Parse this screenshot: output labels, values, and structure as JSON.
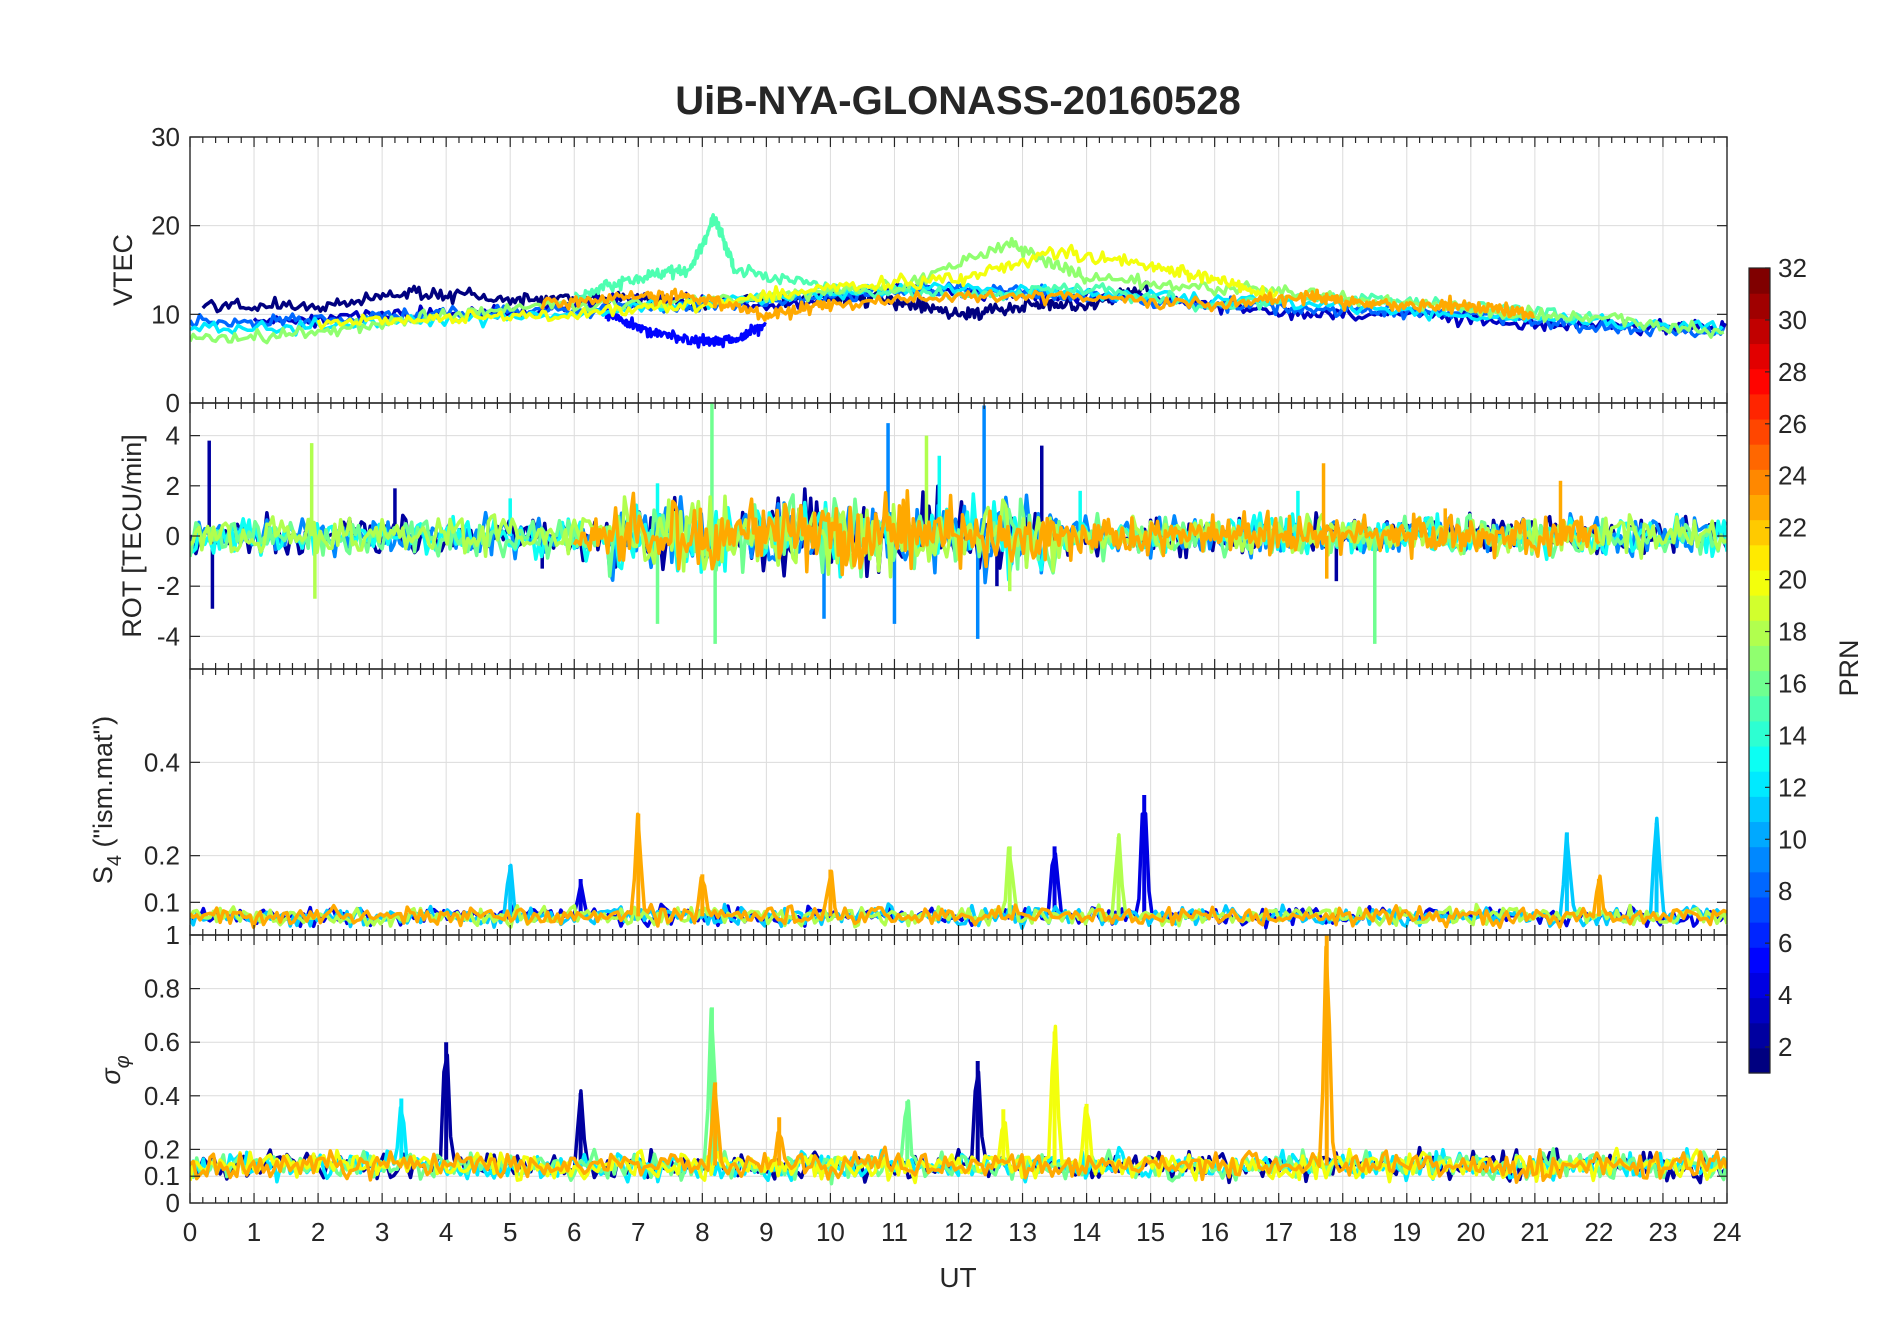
{
  "chart_data": {
    "type": "line",
    "title": "UiB-NYA-GLONASS-20160528",
    "xlabel": "UT",
    "xlim": [
      0,
      24
    ],
    "x_ticks": [
      0,
      1,
      2,
      3,
      4,
      5,
      6,
      7,
      8,
      9,
      10,
      11,
      12,
      13,
      14,
      15,
      16,
      17,
      18,
      19,
      20,
      21,
      22,
      23,
      24
    ],
    "colorbar": {
      "label": "PRN",
      "range": [
        1,
        32
      ],
      "ticks": [
        2,
        4,
        6,
        8,
        10,
        12,
        14,
        16,
        18,
        20,
        22,
        24,
        26,
        28,
        30,
        32
      ],
      "colormap": "jet"
    },
    "panels": [
      {
        "name": "vtec",
        "ylabel": "VTEC",
        "ylim": [
          0,
          30
        ],
        "y_ticks": [
          0,
          10,
          20,
          30
        ],
        "y_tick_labels": [
          "0",
          "10",
          "20",
          "30"
        ],
        "series": [
          {
            "prn": 1,
            "t": [
              0.2,
              2,
              3.5,
              5,
              6.5,
              8,
              10,
              11,
              12,
              13,
              14,
              15
            ],
            "values": [
              11,
              11,
              12.5,
              11.5,
              12,
              11,
              12,
              11.5,
              10,
              11,
              11,
              13
            ]
          },
          {
            "prn": 3,
            "t": [
              1,
              3,
              5,
              7,
              9,
              11,
              13,
              15,
              17,
              19,
              21,
              23,
              24
            ],
            "values": [
              9,
              10,
              10,
              12,
              11,
              13,
              12,
              12,
              10,
              10,
              9,
              8.5,
              8.5
            ]
          },
          {
            "prn": 5,
            "t": [
              6.5,
              7.2,
              8,
              8.5,
              9
            ],
            "values": [
              10,
              8,
              7,
              7,
              9
            ]
          },
          {
            "prn": 8,
            "t": [
              0,
              2,
              4,
              6,
              8,
              10,
              12,
              14,
              16,
              18,
              20,
              22,
              24
            ],
            "values": [
              9,
              9.5,
              10,
              10.5,
              11,
              12,
              13,
              12,
              11,
              10.5,
              10,
              8.5,
              8
            ]
          },
          {
            "prn": 12,
            "t": [
              0,
              3,
              6,
              9,
              12,
              15,
              18,
              21,
              24
            ],
            "values": [
              8,
              9,
              10,
              12,
              13,
              12,
              11,
              9.5,
              8.5
            ]
          },
          {
            "prn": 15,
            "t": [
              6,
              7,
              7.8,
              8.2,
              8.5,
              10,
              12,
              14,
              16,
              18,
              20,
              22
            ],
            "values": [
              12,
              14,
              15,
              21,
              15,
              13,
              12,
              13,
              11,
              12,
              11,
              9.5
            ]
          },
          {
            "prn": 17,
            "t": [
              0,
              2,
              4,
              6,
              9,
              11,
              12.8,
              14,
              16,
              18,
              20,
              22,
              24
            ],
            "values": [
              7,
              8,
              10,
              11,
              12,
              13,
              18,
              14,
              13,
              12,
              10.5,
              9.5,
              8
            ]
          },
          {
            "prn": 20,
            "t": [
              2,
              4,
              6,
              8,
              10,
              12,
              13.5,
              15,
              16,
              17
            ],
            "values": [
              9,
              9.5,
              10,
              11,
              13,
              14,
              17,
              15.5,
              14,
              12
            ]
          },
          {
            "prn": 23,
            "t": [
              5.5,
              7,
              8,
              9,
              10,
              12,
              14,
              16,
              17.5,
              18,
              19,
              20,
              21
            ],
            "values": [
              11,
              12,
              12,
              10,
              11,
              12,
              12,
              11,
              12,
              11.5,
              11,
              11,
              10
            ]
          }
        ]
      },
      {
        "name": "rot",
        "ylabel": "ROT [TECU/min]",
        "ylim": [
          -5.3,
          5.3
        ],
        "y_ticks": [
          -4,
          -2,
          0,
          2,
          4
        ],
        "y_tick_labels": [
          "-4",
          "-2",
          "0",
          "2",
          "4"
        ],
        "series": [
          {
            "prn": 2,
            "spikes": [
              [
                0.3,
                3.8
              ],
              [
                0.35,
                -2.9
              ],
              [
                3.2,
                1.9
              ],
              [
                5.5,
                -1.3
              ],
              [
                12.6,
                -2
              ],
              [
                13.3,
                3.6
              ],
              [
                17.9,
                -1.8
              ]
            ]
          },
          {
            "prn": 9,
            "spikes": [
              [
                9.9,
                -3.3
              ],
              [
                10.9,
                4.5
              ],
              [
                11.0,
                -3.5
              ],
              [
                12.3,
                -4.1
              ],
              [
                12.4,
                5.2
              ]
            ]
          },
          {
            "prn": 13,
            "spikes": [
              [
                5.0,
                1.5
              ],
              [
                7.3,
                2.1
              ],
              [
                11.7,
                3.2
              ],
              [
                13.9,
                1.8
              ],
              [
                17.3,
                1.8
              ]
            ]
          },
          {
            "prn": 16,
            "spikes": [
              [
                8.15,
                5.3
              ],
              [
                8.2,
                -4.3
              ],
              [
                7.3,
                -3.5
              ],
              [
                18.5,
                -4.3
              ]
            ]
          },
          {
            "prn": 18,
            "spikes": [
              [
                1.9,
                3.7
              ],
              [
                1.95,
                -2.5
              ],
              [
                11.5,
                4
              ],
              [
                12.8,
                -2.2
              ]
            ]
          },
          {
            "prn": 23,
            "spikes": [
              [
                17.7,
                2.9
              ],
              [
                17.75,
                -1.7
              ],
              [
                21.4,
                2.2
              ],
              [
                19.6,
                1.1
              ]
            ]
          }
        ]
      },
      {
        "name": "s4",
        "ylabel": "S",
        "ylabel_sub": "4",
        "ylabel_suffix": " (\"ism.mat\")",
        "ylim": [
          0.03,
          0.6
        ],
        "y_ticks": [
          0.1,
          0.2,
          0.4
        ],
        "y_tick_labels": [
          "0.1",
          "0.2",
          "0.4"
        ],
        "series": [
          {
            "prn": 4,
            "peaks": [
              [
                14.9,
                0.33
              ],
              [
                13.5,
                0.22
              ],
              [
                6.1,
                0.15
              ]
            ]
          },
          {
            "prn": 11,
            "peaks": [
              [
                22.9,
                0.27
              ],
              [
                21.5,
                0.25
              ],
              [
                5.0,
                0.18
              ]
            ]
          },
          {
            "prn": 18,
            "peaks": [
              [
                12.8,
                0.22
              ],
              [
                14.5,
                0.24
              ]
            ]
          },
          {
            "prn": 23,
            "peaks": [
              [
                7.0,
                0.29
              ],
              [
                10.0,
                0.17
              ],
              [
                8.0,
                0.16
              ],
              [
                22.0,
                0.15
              ]
            ]
          }
        ]
      },
      {
        "name": "sigma_phi",
        "ylabel": "σ",
        "ylabel_sub": "φ",
        "ylim": [
          0,
          1
        ],
        "y_ticks": [
          0,
          0.1,
          0.2,
          0.4,
          0.6,
          0.8,
          1
        ],
        "y_tick_labels": [
          "0",
          "0.1",
          "0.2",
          "0.4",
          "0.6",
          "0.8",
          "1"
        ],
        "series": [
          {
            "prn": 2,
            "peaks": [
              [
                4.0,
                0.6
              ],
              [
                6.1,
                0.41
              ],
              [
                12.3,
                0.53
              ]
            ]
          },
          {
            "prn": 12,
            "peaks": [
              [
                3.3,
                0.39
              ],
              [
                14.5,
                0.18
              ]
            ]
          },
          {
            "prn": 16,
            "peaks": [
              [
                8.15,
                0.73
              ],
              [
                11.2,
                0.38
              ]
            ]
          },
          {
            "prn": 20,
            "peaks": [
              [
                13.5,
                0.64
              ],
              [
                14.0,
                0.37
              ],
              [
                12.7,
                0.35
              ]
            ]
          },
          {
            "prn": 23,
            "peaks": [
              [
                17.75,
                1.0
              ],
              [
                8.2,
                0.45
              ],
              [
                9.2,
                0.32
              ]
            ]
          }
        ]
      }
    ]
  }
}
